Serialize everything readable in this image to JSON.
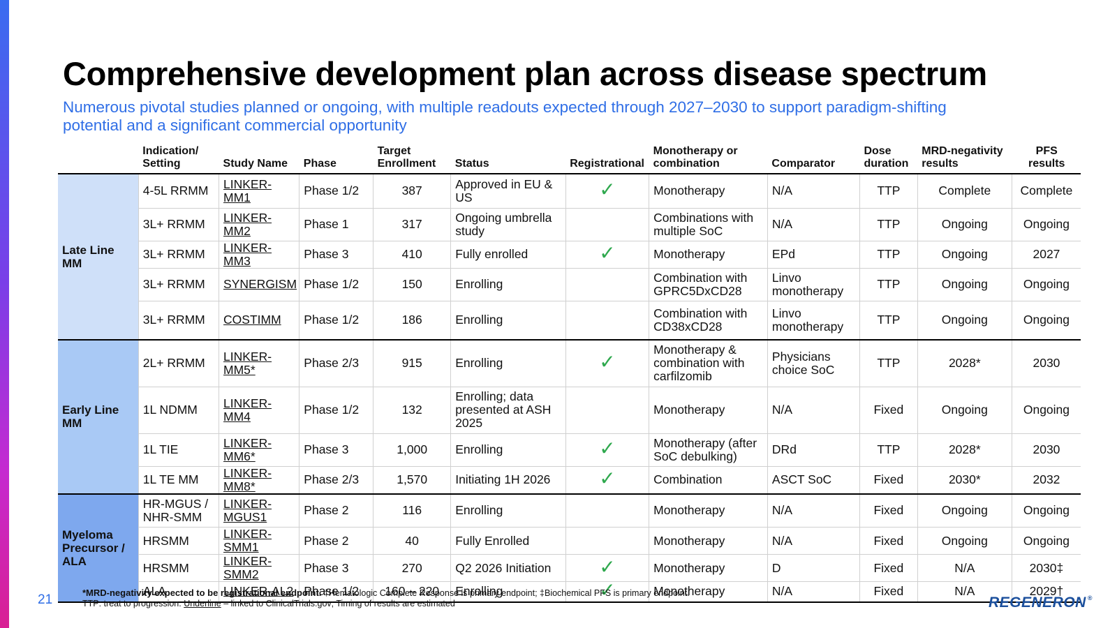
{
  "title": "Comprehensive development plan across disease spectrum",
  "subtitle": "Numerous pivotal studies planned or ongoing, with multiple readouts expected through 2027–2030 to support paradigm-shifting potential and a significant commercial opportunity",
  "headers": [
    "Indication/ Setting",
    "Study Name",
    "Phase",
    "Target Enrollment",
    "Status",
    "Registrational",
    "Monotherapy or combination",
    "Comparator",
    "Dose duration",
    "MRD-negativity results",
    "PFS results"
  ],
  "groups": [
    {
      "label": "Late Line MM",
      "rows": [
        {
          "indication": "4-5L RRMM",
          "study": "LINKER-MM1",
          "phase": "Phase 1/2",
          "enrollment": "387",
          "status": "Approved in EU & US",
          "registrational": "✓",
          "therapy": "Monotherapy",
          "comparator": "N/A",
          "dose": "TTP",
          "mrd": "Complete",
          "pfs": "Complete"
        },
        {
          "indication": "3L+ RRMM",
          "study": "LINKER-MM2",
          "phase": "Phase 1",
          "enrollment": "317",
          "status": "Ongoing umbrella study",
          "registrational": "",
          "therapy": "Combinations with multiple SoC",
          "comparator": "N/A",
          "dose": "TTP",
          "mrd": "Ongoing",
          "pfs": "Ongoing"
        },
        {
          "indication": "3L+ RRMM",
          "study": "LINKER-MM3",
          "phase": "Phase 3",
          "enrollment": "410",
          "status": "Fully enrolled",
          "registrational": "✓",
          "therapy": "Monotherapy",
          "comparator": "EPd",
          "dose": "TTP",
          "mrd": "Ongoing",
          "pfs": "2027"
        },
        {
          "indication": "3L+ RRMM",
          "study": "SYNERGISM",
          "phase": "Phase 1/2",
          "enrollment": "150",
          "status": "Enrolling",
          "registrational": "",
          "therapy": "Combination with GPRC5DxCD28",
          "comparator": "Linvo monotherapy",
          "dose": "TTP",
          "mrd": "Ongoing",
          "pfs": "Ongoing"
        },
        {
          "indication": "3L+ RRMM",
          "study": "COSTIMM",
          "phase": "Phase 1/2",
          "enrollment": "186",
          "status": "Enrolling",
          "registrational": "",
          "therapy": "Combination with CD38xCD28",
          "comparator": "Linvo monotherapy",
          "dose": "TTP",
          "mrd": "Ongoing",
          "pfs": "Ongoing"
        }
      ]
    },
    {
      "label": "Early Line MM",
      "rows": [
        {
          "indication": "2L+ RRMM",
          "study": "LINKER-MM5*",
          "phase": "Phase 2/3",
          "enrollment": "915",
          "status": "Enrolling",
          "registrational": "✓",
          "therapy": "Monotherapy & combination with carfilzomib",
          "comparator": "Physicians choice SoC",
          "dose": "TTP",
          "mrd": "2028*",
          "pfs": "2030"
        },
        {
          "indication": "1L NDMM",
          "study": "LINKER-MM4",
          "phase": "Phase 1/2",
          "enrollment": "132",
          "status": "Enrolling; data presented at ASH 2025",
          "registrational": "",
          "therapy": "Monotherapy",
          "comparator": "N/A",
          "dose": "Fixed",
          "mrd": "Ongoing",
          "pfs": "Ongoing"
        },
        {
          "indication": "1L TIE",
          "study": "LINKER-MM6*",
          "phase": "Phase 3",
          "enrollment": "1,000",
          "status": "Enrolling",
          "registrational": "✓",
          "therapy": "Monotherapy (after SoC debulking)",
          "comparator": "DRd",
          "dose": "TTP",
          "mrd": "2028*",
          "pfs": "2030"
        },
        {
          "indication": "1L TE MM",
          "study": "LINKER-MM8*",
          "phase": "Phase 2/3",
          "enrollment": "1,570",
          "status": "Initiating 1H 2026",
          "registrational": "✓",
          "therapy": "Combination",
          "comparator": "ASCT SoC",
          "dose": "Fixed",
          "mrd": "2030*",
          "pfs": "2032"
        }
      ]
    },
    {
      "label": "Myeloma Precursor / ALA",
      "rows": [
        {
          "indication": "HR-MGUS / NHR-SMM",
          "study": "LINKER-MGUS1",
          "phase": "Phase 2",
          "enrollment": "116",
          "status": "Enrolling",
          "registrational": "",
          "therapy": "Monotherapy",
          "comparator": "N/A",
          "dose": "Fixed",
          "mrd": "Ongoing",
          "pfs": "Ongoing"
        },
        {
          "indication": "HRSMM",
          "study": "LINKER-SMM1",
          "phase": "Phase 2",
          "enrollment": "40",
          "status": "Fully Enrolled",
          "registrational": "",
          "therapy": "Monotherapy",
          "comparator": "N/A",
          "dose": "Fixed",
          "mrd": "Ongoing",
          "pfs": "Ongoing"
        },
        {
          "indication": "HRSMM",
          "study": "LINKER-SMM2",
          "phase": "Phase 3",
          "enrollment": "270",
          "status": "Q2 2026 Initiation",
          "registrational": "✓",
          "therapy": "Monotherapy",
          "comparator": "D",
          "dose": "Fixed",
          "mrd": "N/A",
          "pfs": "2030‡"
        },
        {
          "indication": "ALA",
          "study": "LINKER-AL2",
          "phase": "Phase 1/2",
          "enrollment": "160 – 220",
          "status": "Enrolling",
          "registrational": "✓",
          "therapy": "Monotherapy",
          "comparator": "N/A",
          "dose": "Fixed",
          "mrd": "N/A",
          "pfs": "2029†"
        }
      ]
    }
  ],
  "footnote": {
    "bold": "*MRD-negativity expected to be registrational endpoint.",
    "rest": " †Hematologic Complete Response is primary endpoint; ‡Biochemical PFS is primary endpoint.",
    "line2_a": "TTP: treat to progression. ",
    "line2_u": "Underline",
    "line2_b": " – linked to ClinicalTrials.gov; Timing of results are estimated"
  },
  "page_number": "21",
  "logo": "REGENERON",
  "colors": {
    "accent": "#2f6ee6",
    "check": "#2ea84d",
    "group1": "#cfe0f9",
    "group2": "#a9c9f5",
    "group3": "#7ea8ee"
  }
}
